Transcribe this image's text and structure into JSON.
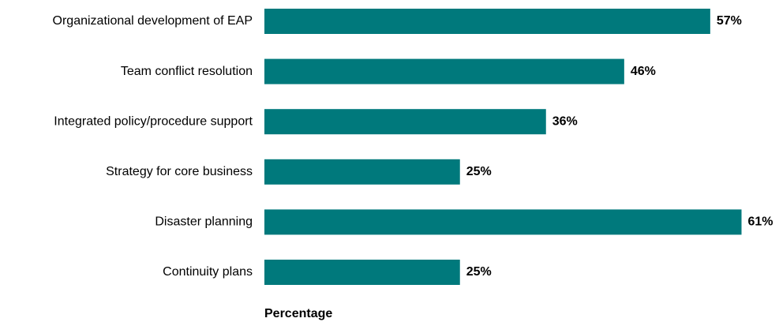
{
  "chart_data": {
    "type": "hbar",
    "categories": [
      "Organizational development of EAP",
      "Team conflict resolution",
      "Integrated policy/procedure support",
      "Strategy for core business",
      "Disaster planning",
      "Continuity plans"
    ],
    "values": [
      57,
      46,
      36,
      25,
      61,
      25
    ],
    "value_labels": [
      "57%",
      "46%",
      "36%",
      "25%",
      "61%",
      "25%"
    ],
    "color": "#00797c",
    "xlabel": "Percentage"
  }
}
